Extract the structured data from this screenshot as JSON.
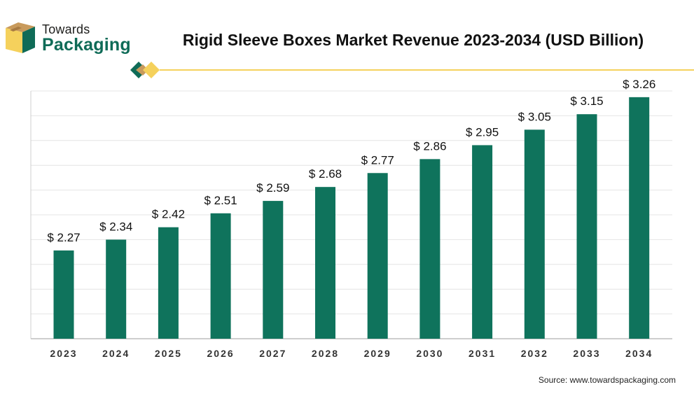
{
  "logo": {
    "line1": "Towards",
    "line2": "Packaging"
  },
  "source": "Source: www.towardspackaging.com",
  "colors": {
    "bar": "#0f735c",
    "accent": "#f5d15c",
    "grid": "#e4e4e4"
  },
  "chart_data": {
    "type": "bar",
    "title": "Rigid Sleeve Boxes Market Revenue 2023-2034 (USD Billion)",
    "categories": [
      "2023",
      "2024",
      "2025",
      "2026",
      "2027",
      "2028",
      "2029",
      "2030",
      "2031",
      "2032",
      "2033",
      "2034"
    ],
    "values": [
      2.27,
      2.34,
      2.42,
      2.51,
      2.59,
      2.68,
      2.77,
      2.86,
      2.95,
      3.05,
      3.15,
      3.26
    ],
    "value_labels": [
      "$ 2.27",
      "$ 2.34",
      "$ 2.42",
      "$ 2.51",
      "$ 2.59",
      "$ 2.68",
      "$ 2.77",
      "$ 2.86",
      "$ 2.95",
      "$ 3.05",
      "$ 3.15",
      "$ 3.26"
    ],
    "xlabel": "",
    "ylabel": "",
    "ylim": [
      1.7,
      3.3
    ],
    "grid": true,
    "legend": "none"
  }
}
